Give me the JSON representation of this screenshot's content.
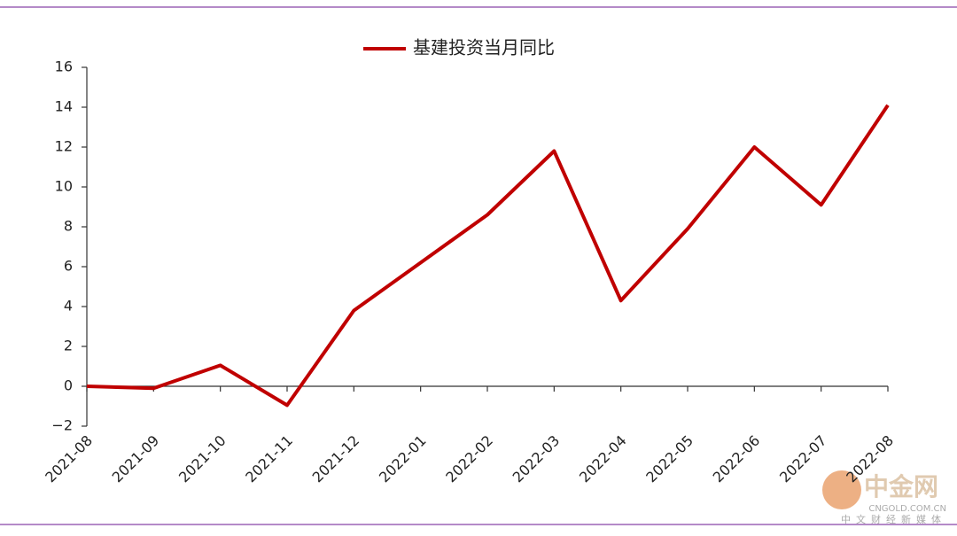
{
  "chart_data": {
    "type": "line",
    "categories": [
      "2021-08",
      "2021-09",
      "2021-10",
      "2021-11",
      "2021-12",
      "2022-01",
      "2022-02",
      "2022-03",
      "2022-04",
      "2022-05",
      "2022-06",
      "2022-07",
      "2022-08"
    ],
    "series": [
      {
        "name": "基建投资当月同比",
        "color": "#c00000",
        "values": [
          0,
          -0.1,
          1.05,
          -0.95,
          3.8,
          6.2,
          8.6,
          11.8,
          4.3,
          7.9,
          12.0,
          9.1,
          14.1
        ]
      }
    ],
    "ylim": [
      -2,
      16
    ],
    "yticks": [
      {
        "value": -2,
        "label": "−2"
      },
      0,
      2,
      4,
      6,
      8,
      10,
      12,
      14,
      16
    ],
    "grid": false,
    "legend": "top"
  },
  "watermark": {
    "logo": "中金网",
    "site": "CNGOLD.COM.CN",
    "slogan": "中文财经新媒体"
  }
}
